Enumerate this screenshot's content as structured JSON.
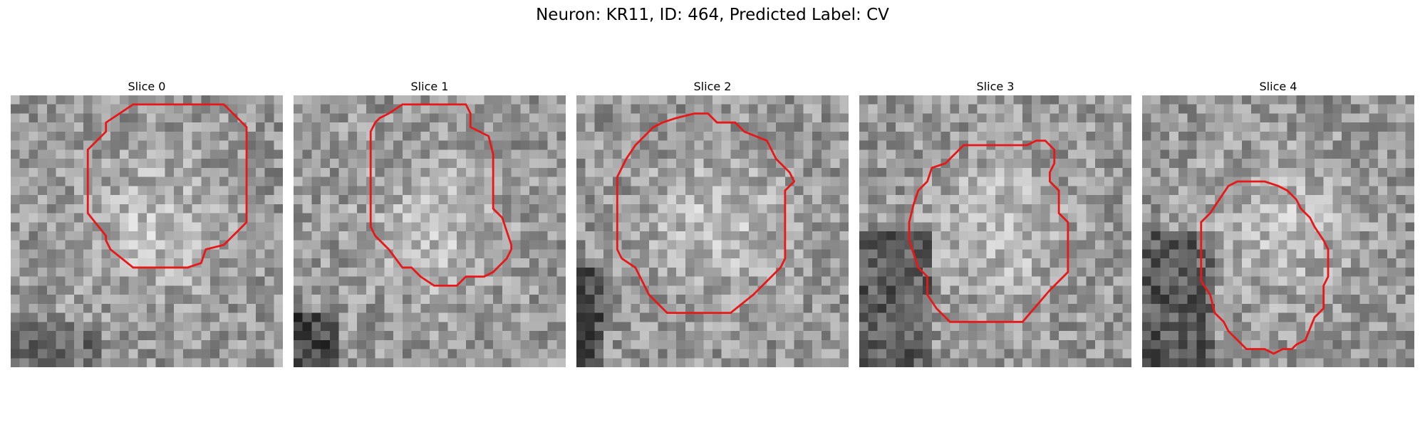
{
  "figure": {
    "title": "Neuron: KR11, ID: 464, Predicted Label: CV"
  },
  "panels": [
    {
      "title": "Slice 0",
      "seed": 11
    },
    {
      "title": "Slice 1",
      "seed": 23
    },
    {
      "title": "Slice 2",
      "seed": 37
    },
    {
      "title": "Slice 3",
      "seed": 51
    },
    {
      "title": "Slice 4",
      "seed": 67
    }
  ],
  "image": {
    "grid": 30,
    "colormap": "gray",
    "contour_color": "#e81818"
  },
  "contours": [
    [
      [
        13.5,
        1
      ],
      [
        23.5,
        1
      ],
      [
        26,
        3.5
      ],
      [
        26,
        14
      ],
      [
        23.5,
        16.5
      ],
      [
        21.5,
        17
      ],
      [
        21,
        18.5
      ],
      [
        19.5,
        19
      ],
      [
        13.5,
        19
      ],
      [
        11,
        17
      ],
      [
        10.5,
        16
      ],
      [
        10.5,
        15.5
      ],
      [
        8.5,
        13
      ],
      [
        8.5,
        6
      ],
      [
        10.5,
        4
      ],
      [
        10.5,
        3
      ]
    ],
    [
      [
        12,
        1
      ],
      [
        19,
        1
      ],
      [
        19.5,
        2
      ],
      [
        19.5,
        3.5
      ],
      [
        21.5,
        4.5
      ],
      [
        22,
        6.5
      ],
      [
        22,
        12.5
      ],
      [
        23,
        13.5
      ],
      [
        24,
        16.5
      ],
      [
        24,
        17
      ],
      [
        23.5,
        18
      ],
      [
        22,
        19.5
      ],
      [
        21,
        20
      ],
      [
        19,
        20
      ],
      [
        18,
        21
      ],
      [
        15.5,
        21
      ],
      [
        14,
        20
      ],
      [
        13,
        19
      ],
      [
        12,
        19
      ],
      [
        10.5,
        17
      ],
      [
        9,
        15.5
      ],
      [
        8.5,
        14.5
      ],
      [
        8.5,
        4
      ],
      [
        9,
        3
      ],
      [
        9.5,
        2.5
      ],
      [
        10.5,
        2
      ]
    ],
    [
      [
        13,
        2
      ],
      [
        14.5,
        2
      ],
      [
        15.5,
        3
      ],
      [
        17.5,
        3
      ],
      [
        18.5,
        4
      ],
      [
        21,
        5
      ],
      [
        22,
        7
      ],
      [
        23,
        8
      ],
      [
        23.5,
        8.5
      ],
      [
        24,
        9.5
      ],
      [
        23,
        10.5
      ],
      [
        23,
        18
      ],
      [
        22.5,
        19
      ],
      [
        21.5,
        20
      ],
      [
        20.5,
        21
      ],
      [
        19.5,
        22
      ],
      [
        17,
        24
      ],
      [
        10,
        24
      ],
      [
        9,
        23
      ],
      [
        8,
        22
      ],
      [
        7.5,
        21
      ],
      [
        6.5,
        19
      ],
      [
        5,
        18
      ],
      [
        4.5,
        17
      ],
      [
        4.5,
        9
      ],
      [
        5.5,
        7
      ],
      [
        6.5,
        5.5
      ],
      [
        7.5,
        4.5
      ],
      [
        8.5,
        3.5
      ],
      [
        9.5,
        3
      ],
      [
        11,
        2.5
      ]
    ],
    [
      [
        11.5,
        5.5
      ],
      [
        18.5,
        5.5
      ],
      [
        19.5,
        5
      ],
      [
        20.5,
        5
      ],
      [
        21.5,
        6
      ],
      [
        21.5,
        7.5
      ],
      [
        21,
        8.5
      ],
      [
        21,
        9.5
      ],
      [
        22,
        10.5
      ],
      [
        22,
        13
      ],
      [
        23,
        14
      ],
      [
        23,
        19.5
      ],
      [
        21,
        21.5
      ],
      [
        18,
        25
      ],
      [
        10,
        25
      ],
      [
        8.5,
        23.5
      ],
      [
        7.5,
        22
      ],
      [
        7.5,
        20
      ],
      [
        6.5,
        19
      ],
      [
        5.5,
        16
      ],
      [
        5.5,
        14
      ],
      [
        6,
        12
      ],
      [
        6.5,
        10.5
      ],
      [
        7.5,
        9.5
      ],
      [
        8,
        8
      ],
      [
        9.5,
        7.5
      ],
      [
        10.5,
        6.5
      ]
    ],
    [
      [
        10.5,
        9.5
      ],
      [
        13.5,
        9.5
      ],
      [
        15,
        10
      ],
      [
        16,
        10.5
      ],
      [
        17,
        11.5
      ],
      [
        17.5,
        12.5
      ],
      [
        18.5,
        13.5
      ],
      [
        19,
        14.5
      ],
      [
        20,
        16
      ],
      [
        20.5,
        17
      ],
      [
        20.5,
        20
      ],
      [
        20,
        21
      ],
      [
        20,
        23.5
      ],
      [
        19,
        24.5
      ],
      [
        18,
        27
      ],
      [
        17,
        27.5
      ],
      [
        16.5,
        28
      ],
      [
        15.5,
        28
      ],
      [
        14.5,
        28.5
      ],
      [
        13.5,
        28
      ],
      [
        11.5,
        28
      ],
      [
        10.5,
        27
      ],
      [
        9.5,
        26
      ],
      [
        9,
        25
      ],
      [
        8,
        24
      ],
      [
        7.5,
        22
      ],
      [
        6.5,
        20.5
      ],
      [
        6.5,
        14
      ],
      [
        7.5,
        13
      ],
      [
        8.5,
        11.5
      ],
      [
        9.5,
        10
      ]
    ]
  ]
}
